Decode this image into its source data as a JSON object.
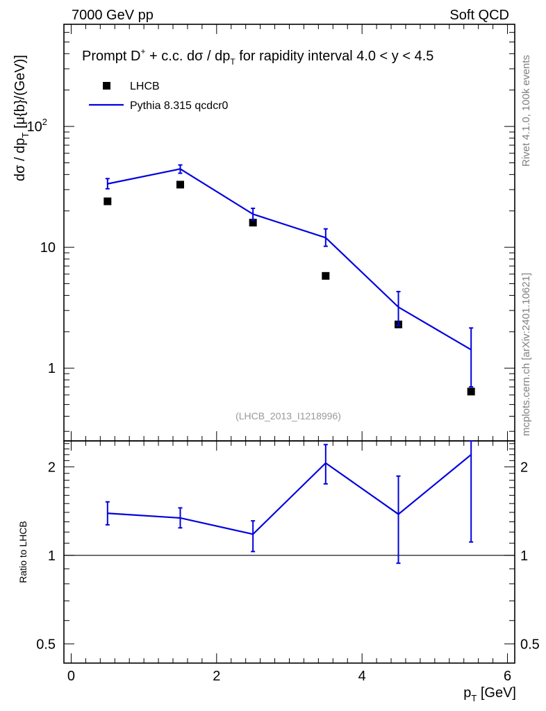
{
  "header": {
    "left": "7000 GeV pp",
    "right": "Soft QCD"
  },
  "side_labels": {
    "rivet": "Rivet 4.1.0,  100k events",
    "mcplots": "mcplots.cern.ch [arXiv:2401.10621]"
  },
  "chart_data": [
    {
      "type": "scatter",
      "panel": "main",
      "title_main": "Prompt D",
      "title_sup": "+",
      "title_cc": " + c.c.  dσ / dp",
      "title_sub": "T",
      "title_tail": " for rapidity interval 4.0 < y < 4.5",
      "ylabel_main": "dσ / dp",
      "ylabel_sub": "T",
      "ylabel_tail": " [μ{b}/(GeV)]",
      "yscale": "log",
      "ylim": [
        0.25,
        700
      ],
      "xlim": [
        -0.1,
        6.1
      ],
      "y_ticks": [
        {
          "value": 1,
          "label": "1"
        },
        {
          "value": 10,
          "label": "10"
        },
        {
          "value": 100,
          "label": "10",
          "sup": "2"
        }
      ],
      "analysis_id": "(LHCB_2013_I1218996)",
      "series": [
        {
          "name": "LHCB",
          "style": "square-marker",
          "color": "#000000",
          "x": [
            0.5,
            1.5,
            2.5,
            3.5,
            4.5,
            5.5
          ],
          "y": [
            24,
            33,
            16,
            5.8,
            2.3,
            0.64
          ]
        },
        {
          "name": "Pythia 8.315 qcdcr0",
          "style": "line",
          "color": "#0000e0",
          "x": [
            0.5,
            1.5,
            2.5,
            3.5,
            4.5,
            5.5
          ],
          "y": [
            33.5,
            44.5,
            18.8,
            12.0,
            3.2,
            1.42
          ],
          "err_low": [
            30.5,
            41.0,
            16.8,
            10.2,
            2.25,
            0.7
          ],
          "err_high": [
            37.0,
            48.0,
            21.0,
            14.2,
            4.3,
            2.15
          ]
        }
      ]
    },
    {
      "type": "line",
      "panel": "ratio",
      "ylabel": "Ratio to LHCB",
      "yscale": "log",
      "ylim": [
        0.43,
        2.45
      ],
      "xlim": [
        -0.1,
        6.1
      ],
      "xlabel_main": "p",
      "xlabel_sub": "T",
      "xlabel_tail": " [GeV]",
      "x_ticks": [
        0,
        2,
        4,
        6
      ],
      "y_ticks": [
        {
          "value": 0.5,
          "label": "0.5"
        },
        {
          "value": 1,
          "label": "1"
        },
        {
          "value": 2,
          "label": "2"
        }
      ],
      "reference": 1,
      "series": [
        {
          "name": "Pythia 8.315 qcdcr0 / LHCB",
          "color": "#0000e0",
          "x": [
            0.5,
            1.5,
            2.5,
            3.5,
            4.5,
            5.5
          ],
          "y": [
            1.39,
            1.34,
            1.18,
            2.06,
            1.38,
            2.2
          ],
          "err_low": [
            1.27,
            1.24,
            1.03,
            1.75,
            0.94,
            1.11
          ],
          "err_high": [
            1.52,
            1.45,
            1.31,
            2.38,
            1.86,
            2.45
          ]
        }
      ]
    }
  ]
}
